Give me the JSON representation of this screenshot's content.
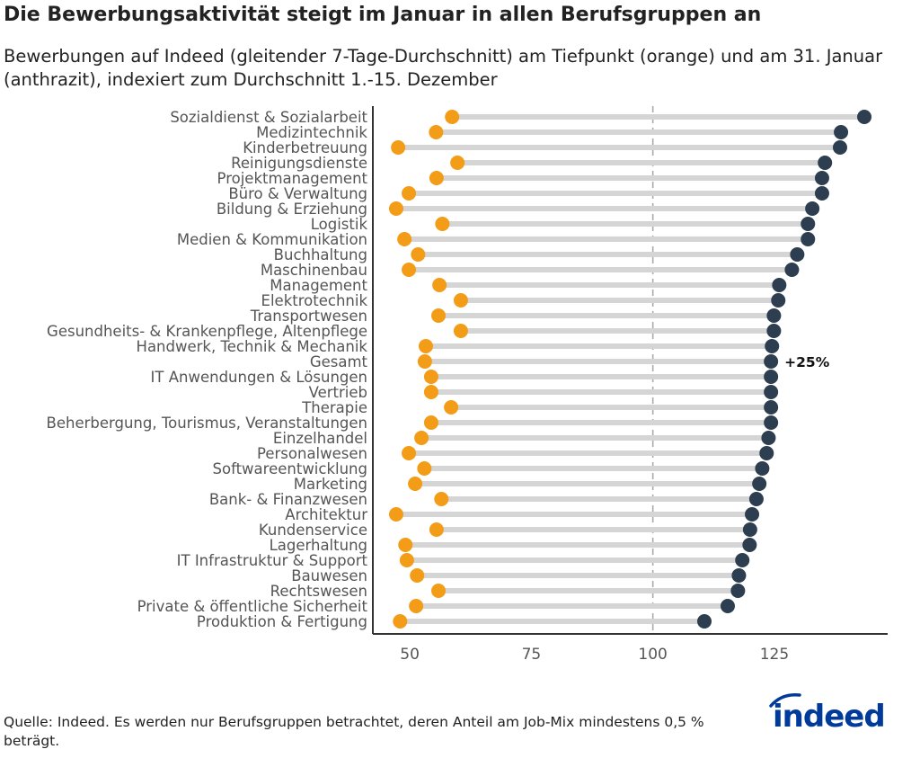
{
  "title": "Die Bewerbungsaktivität steigt im Januar in allen Berufsgruppen an",
  "subtitle": "Bewerbungen auf Indeed (gleitender 7-Tage-Durchschnitt) am Tiefpunkt (orange) und am 31. Januar (anthrazit), indexiert zum Durchschnitt 1.-15. Dezember",
  "source": "Quelle: Indeed. Es werden nur Berufsgruppen betrachtet, deren Anteil am Job-Mix mindestens 0,5 % beträgt.",
  "logo_text": "indeed",
  "colors": {
    "low": "#F39C17",
    "jan31": "#2D3E50",
    "connector": "#D5D5D5",
    "reference": "#AAAAAA",
    "logo": "#003A9B"
  },
  "chart_data": {
    "type": "dumbbell",
    "title": "Die Bewerbungsaktivität steigt im Januar in allen Berufsgruppen an",
    "xlabel": "",
    "ylabel": "",
    "xlim": [
      42.4,
      148.3
    ],
    "xticks": [
      50,
      75,
      100,
      125
    ],
    "reference_line": 100,
    "grid": false,
    "annotation": {
      "category": "Gesamt",
      "text": "+25%"
    },
    "series": [
      {
        "name": "Tiefpunkt",
        "color": "orange"
      },
      {
        "name": "31. Januar",
        "color": "anthrazit"
      }
    ],
    "categories": [
      "Sozialdienst & Sozialarbeit",
      "Medizintechnik",
      "Kinderbetreuung",
      "Reinigungsdienste",
      "Projektmanagement",
      "Büro & Verwaltung",
      "Bildung & Erziehung",
      "Logistik",
      "Medien & Kommunikation",
      "Buchhaltung",
      "Maschinenbau",
      "Management",
      "Elektrotechnik",
      "Transportwesen",
      "Gesundheits- & Krankenpflege, Altenpflege",
      "Handwerk, Technik & Mechanik",
      "Gesamt",
      "IT Anwendungen & Lösungen",
      "Vertrieb",
      "Therapie",
      "Beherbergung, Tourismus, Veranstaltungen",
      "Einzelhandel",
      "Personalwesen",
      "Softwareentwicklung",
      "Marketing",
      "Bank- & Finanzwesen",
      "Architektur",
      "Kundenservice",
      "Lagerhaltung",
      "IT Infrastruktur & Support",
      "Bauwesen",
      "Rechtswesen",
      "Private & öffentliche Sicherheit",
      "Produktion & Fertigung"
    ],
    "low": [
      58.7,
      55.4,
      47.6,
      59.8,
      55.5,
      49.8,
      47.2,
      56.7,
      48.9,
      51.7,
      49.8,
      56.1,
      60.5,
      55.9,
      60.5,
      53.3,
      53.1,
      54.4,
      54.4,
      58.5,
      54.4,
      52.4,
      49.8,
      53.0,
      51.1,
      56.5,
      47.2,
      55.5,
      49.1,
      49.4,
      51.5,
      55.9,
      51.3,
      48.0
    ],
    "jan31": [
      143.5,
      138.7,
      138.5,
      135.4,
      134.8,
      134.8,
      132.8,
      131.9,
      131.9,
      129.7,
      128.6,
      126.0,
      125.8,
      124.9,
      124.9,
      124.5,
      124.3,
      124.3,
      124.3,
      124.3,
      124.3,
      123.8,
      123.4,
      122.5,
      121.9,
      121.3,
      120.4,
      120.0,
      119.9,
      118.4,
      117.7,
      117.5,
      115.4,
      110.6
    ]
  }
}
